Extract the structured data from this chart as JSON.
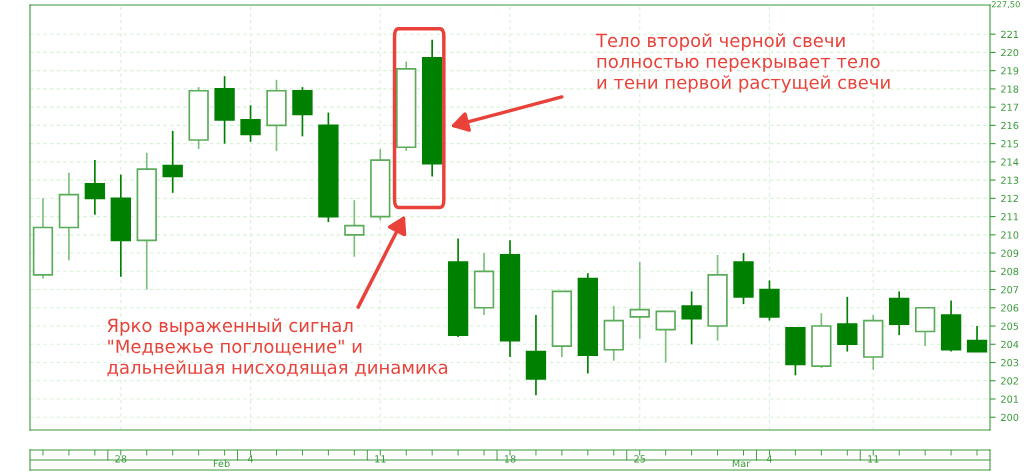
{
  "chart_data": {
    "type": "candlestick",
    "categories": [
      null,
      null,
      null,
      "28",
      null,
      null,
      null,
      null,
      "4",
      null,
      null,
      null,
      null,
      "11",
      null,
      null,
      null,
      null,
      "18",
      null,
      null,
      null,
      null,
      "25",
      null,
      null,
      null,
      null,
      "4",
      null,
      null,
      null,
      "11",
      null,
      null,
      null,
      null
    ],
    "ohlc": [
      [
        207.8,
        212.0,
        207.6,
        210.4
      ],
      [
        210.4,
        213.4,
        208.6,
        212.2
      ],
      [
        212.8,
        214.1,
        211.1,
        212.0
      ],
      [
        212.0,
        213.3,
        207.7,
        209.7
      ],
      [
        209.7,
        214.5,
        207.0,
        213.6
      ],
      [
        213.8,
        215.7,
        212.3,
        213.2
      ],
      [
        215.2,
        218.1,
        214.7,
        217.9
      ],
      [
        218.0,
        218.7,
        215.0,
        216.3
      ],
      [
        216.3,
        217.1,
        215.1,
        215.5
      ],
      [
        216.0,
        218.5,
        214.6,
        217.9
      ],
      [
        217.9,
        218.1,
        215.4,
        216.6
      ],
      [
        216.0,
        216.7,
        210.7,
        211.0
      ],
      [
        210.0,
        211.9,
        208.8,
        210.5
      ],
      [
        211.0,
        214.7,
        210.8,
        214.1
      ],
      [
        214.8,
        219.5,
        214.6,
        219.1
      ],
      [
        219.7,
        220.7,
        213.2,
        213.9
      ],
      [
        208.5,
        209.8,
        204.4,
        204.5
      ],
      [
        206.0,
        209.0,
        205.6,
        208.0
      ],
      [
        208.9,
        209.7,
        203.3,
        204.2
      ],
      [
        203.6,
        205.6,
        201.2,
        202.1
      ],
      [
        203.9,
        206.9,
        203.3,
        206.9
      ],
      [
        207.6,
        207.9,
        202.4,
        203.4
      ],
      [
        203.7,
        206.1,
        203.1,
        205.3
      ],
      [
        205.5,
        208.5,
        204.3,
        205.9
      ],
      [
        204.8,
        205.8,
        203.0,
        205.8
      ],
      [
        206.1,
        206.9,
        204.0,
        205.4
      ],
      [
        205.0,
        208.9,
        204.2,
        207.8
      ],
      [
        208.5,
        209.0,
        206.2,
        206.6
      ],
      [
        207.0,
        207.5,
        205.3,
        205.5
      ],
      [
        204.9,
        204.9,
        202.3,
        202.9
      ],
      [
        202.8,
        205.7,
        202.7,
        205.0
      ],
      [
        205.1,
        206.6,
        203.6,
        204.0
      ],
      [
        203.3,
        205.6,
        202.6,
        205.3
      ],
      [
        206.5,
        206.9,
        204.5,
        205.1
      ],
      [
        204.7,
        206.0,
        203.9,
        206.0
      ],
      [
        205.6,
        206.4,
        203.6,
        203.7
      ],
      [
        204.2,
        205.0,
        203.6,
        203.6
      ]
    ],
    "colors": [
      "#ffffff",
      "#ffffff",
      "#008000",
      "#008000",
      "#ffffff",
      "#008000",
      "#ffffff",
      "#008000",
      "#008000",
      "#ffffff",
      "#008000",
      "#008000",
      "#ffffff",
      "#ffffff",
      "#ffffff",
      "#008000",
      "#008000",
      "#ffffff",
      "#008000",
      "#008000",
      "#ffffff",
      "#008000",
      "#ffffff",
      "#ffffff",
      "#ffffff",
      "#008000",
      "#ffffff",
      "#008000",
      "#008000",
      "#008000",
      "#ffffff",
      "#008000",
      "#ffffff",
      "#008000",
      "#ffffff",
      "#008000",
      "#008000"
    ],
    "ylim": [
      199.3,
      222.6
    ],
    "yticks": [
      200,
      201,
      202,
      203,
      204,
      205,
      206,
      207,
      208,
      209,
      210,
      211,
      212,
      213,
      214,
      215,
      216,
      217,
      218,
      219,
      220,
      221
    ],
    "grid": true,
    "annotations": [
      "Тело второй черной свечи\nполностью перекрывает тело\nи тени первой растущей свечи",
      "Ярко выраженный сигнал\n\"Медвежье поглощение\" и\nдальнейшая нисходящая динамика",
      "Feb",
      "Mar",
      "227,50"
    ]
  }
}
